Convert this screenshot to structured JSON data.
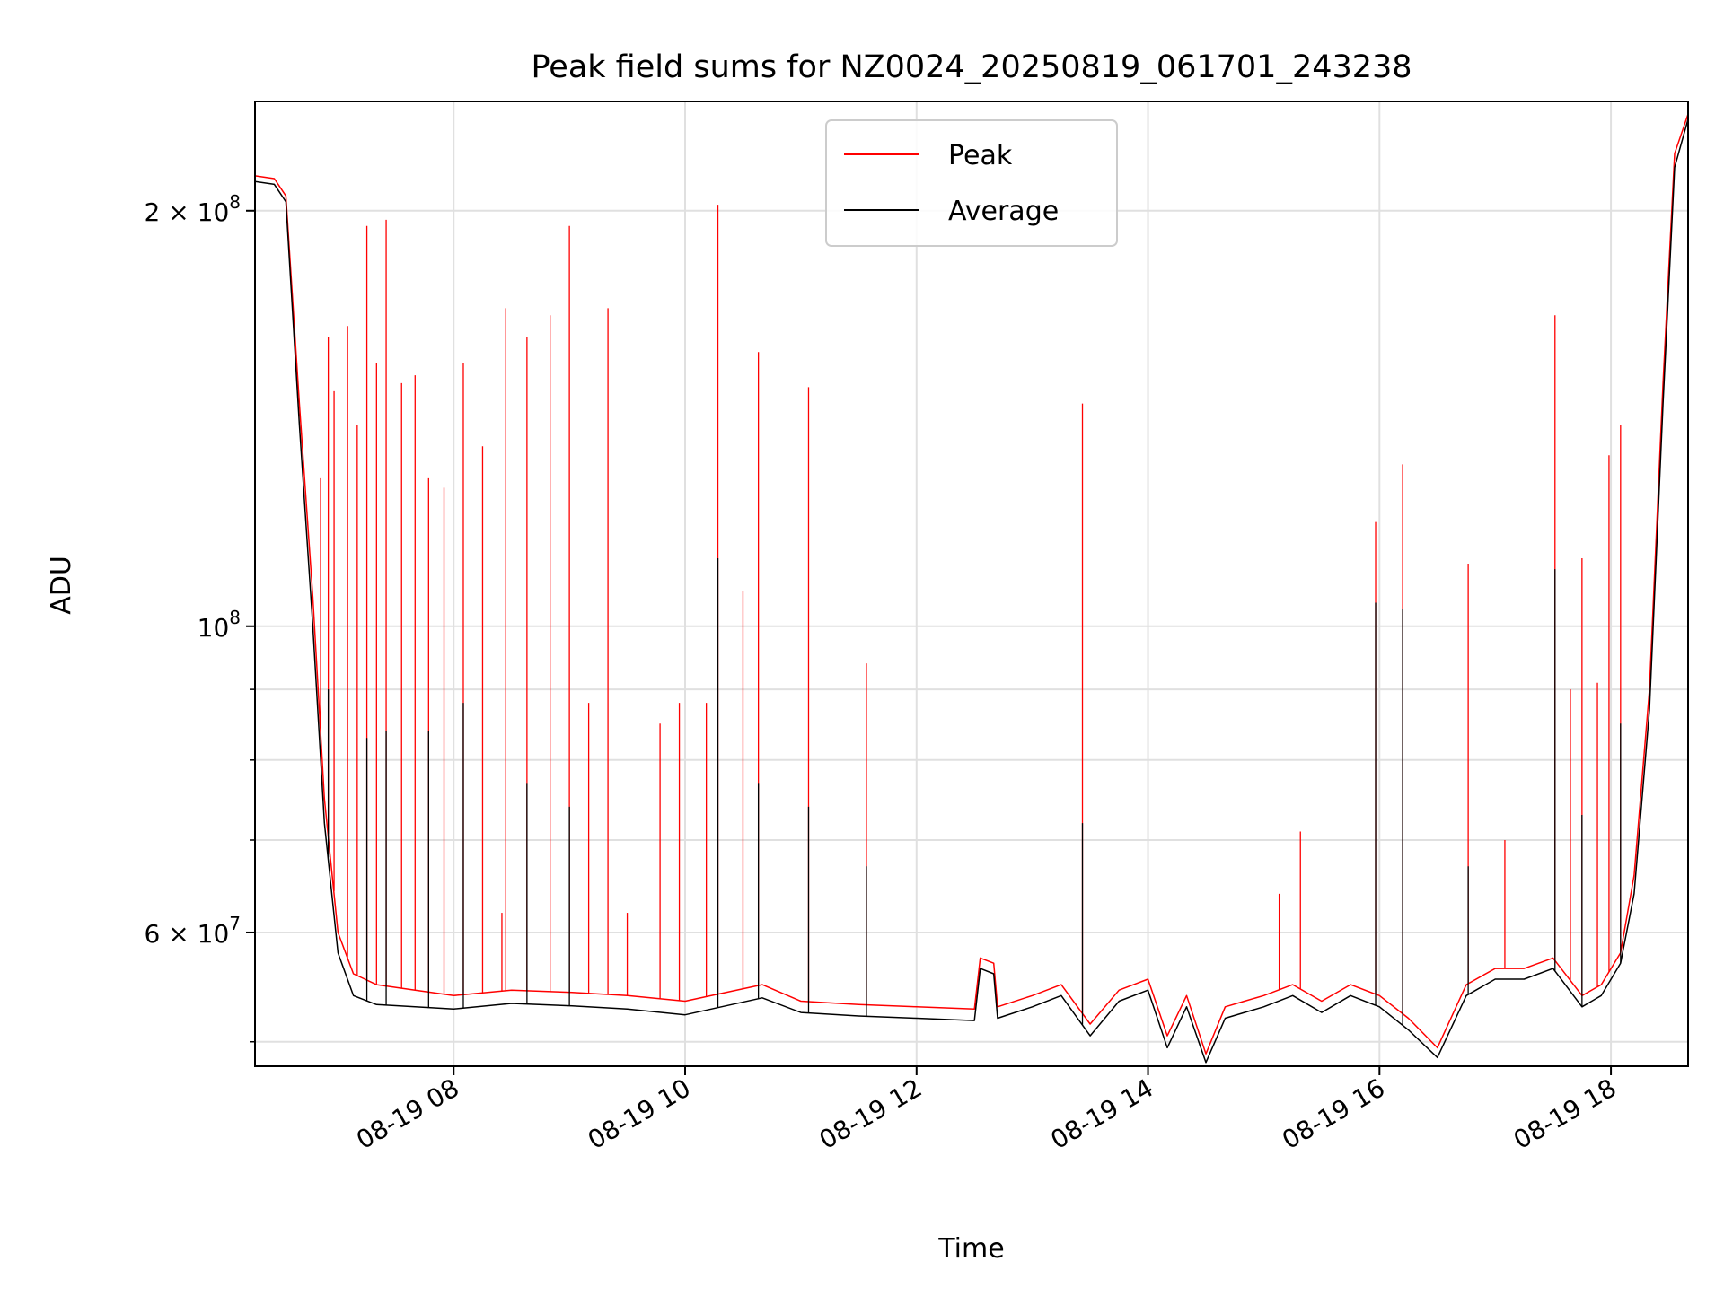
{
  "chart_data": {
    "type": "line",
    "title": "Peak field sums for NZ0024_20250819_061701_243238",
    "xlabel": "Time",
    "ylabel": "ADU",
    "yscale": "log",
    "xlim": [
      "2025-08-19 06:17",
      "2025-08-19 18:40"
    ],
    "ylim": [
      48000000,
      240000000
    ],
    "grid": true,
    "legend_position": "top-center",
    "x_ticks": [
      {
        "value": "2025-08-19 08:00",
        "label": "08-19 08"
      },
      {
        "value": "2025-08-19 10:00",
        "label": "08-19 10"
      },
      {
        "value": "2025-08-19 12:00",
        "label": "08-19 12"
      },
      {
        "value": "2025-08-19 14:00",
        "label": "08-19 14"
      },
      {
        "value": "2025-08-19 16:00",
        "label": "08-19 16"
      },
      {
        "value": "2025-08-19 18:00",
        "label": "08-19 18"
      }
    ],
    "y_ticks_labeled": [
      {
        "value": 60000000,
        "base": "6",
        "exp": "7"
      },
      {
        "value": 100000000,
        "base": "",
        "exp": "8"
      },
      {
        "value": 200000000,
        "base": "2",
        "exp": "8"
      }
    ],
    "y_ticks_minor": [
      50000000,
      70000000,
      80000000,
      90000000
    ],
    "series": [
      {
        "name": "Peak",
        "color": "#ff0000",
        "x": [
          "2025-08-19 06:17",
          "2025-08-19 06:27",
          "2025-08-19 06:33",
          "2025-08-19 06:40",
          "2025-08-19 06:47",
          "2025-08-19 06:53",
          "2025-08-19 07:00",
          "2025-08-19 07:08",
          "2025-08-19 07:20",
          "2025-08-19 07:40",
          "2025-08-19 08:00",
          "2025-08-19 08:30",
          "2025-08-19 09:00",
          "2025-08-19 09:30",
          "2025-08-19 10:00",
          "2025-08-19 10:40",
          "2025-08-19 11:00",
          "2025-08-19 11:30",
          "2025-08-19 12:00",
          "2025-08-19 12:30",
          "2025-08-19 12:33",
          "2025-08-19 12:40",
          "2025-08-19 12:42",
          "2025-08-19 13:00",
          "2025-08-19 13:15",
          "2025-08-19 13:30",
          "2025-08-19 13:45",
          "2025-08-19 14:00",
          "2025-08-19 14:10",
          "2025-08-19 14:20",
          "2025-08-19 14:30",
          "2025-08-19 14:40",
          "2025-08-19 14:50",
          "2025-08-19 15:00",
          "2025-08-19 15:15",
          "2025-08-19 15:30",
          "2025-08-19 15:45",
          "2025-08-19 16:00",
          "2025-08-19 16:15",
          "2025-08-19 16:30",
          "2025-08-19 16:45",
          "2025-08-19 17:00",
          "2025-08-19 17:15",
          "2025-08-19 17:30",
          "2025-08-19 17:45",
          "2025-08-19 17:55",
          "2025-08-19 18:05",
          "2025-08-19 18:12",
          "2025-08-19 18:20",
          "2025-08-19 18:27",
          "2025-08-19 18:33",
          "2025-08-19 18:40"
        ],
        "y": [
          212000000,
          211000000,
          205000000,
          145000000,
          105000000,
          75000000,
          60000000,
          56000000,
          55000000,
          54500000,
          54000000,
          54500000,
          54300000,
          54000000,
          53500000,
          55000000,
          53500000,
          53200000,
          53000000,
          52800000,
          57500000,
          57000000,
          53000000,
          54000000,
          55000000,
          51500000,
          54500000,
          55500000,
          50500000,
          54000000,
          49000000,
          53000000,
          53500000,
          54000000,
          55000000,
          53500000,
          55000000,
          54000000,
          52000000,
          49500000,
          55000000,
          56500000,
          56500000,
          57500000,
          54000000,
          55000000,
          58000000,
          66000000,
          90000000,
          150000000,
          220000000,
          235000000
        ],
        "spikes": [
          [
            "2025-08-19 06:51",
            128000000
          ],
          [
            "2025-08-19 06:55",
            162000000
          ],
          [
            "2025-08-19 06:58",
            148000000
          ],
          [
            "2025-08-19 07:05",
            165000000
          ],
          [
            "2025-08-19 07:10",
            140000000
          ],
          [
            "2025-08-19 07:15",
            195000000
          ],
          [
            "2025-08-19 07:20",
            155000000
          ],
          [
            "2025-08-19 07:25",
            197000000
          ],
          [
            "2025-08-19 07:33",
            150000000
          ],
          [
            "2025-08-19 07:40",
            152000000
          ],
          [
            "2025-08-19 07:47",
            128000000
          ],
          [
            "2025-08-19 07:55",
            126000000
          ],
          [
            "2025-08-19 08:05",
            155000000
          ],
          [
            "2025-08-19 08:15",
            135000000
          ],
          [
            "2025-08-19 08:25",
            62000000
          ],
          [
            "2025-08-19 08:27",
            170000000
          ],
          [
            "2025-08-19 08:38",
            162000000
          ],
          [
            "2025-08-19 08:50",
            168000000
          ],
          [
            "2025-08-19 09:00",
            195000000
          ],
          [
            "2025-08-19 09:10",
            88000000
          ],
          [
            "2025-08-19 09:20",
            170000000
          ],
          [
            "2025-08-19 09:30",
            62000000
          ],
          [
            "2025-08-19 09:47",
            85000000
          ],
          [
            "2025-08-19 09:57",
            88000000
          ],
          [
            "2025-08-19 10:11",
            88000000
          ],
          [
            "2025-08-19 10:17",
            202000000
          ],
          [
            "2025-08-19 10:30",
            106000000
          ],
          [
            "2025-08-19 10:38",
            158000000
          ],
          [
            "2025-08-19 11:04",
            149000000
          ],
          [
            "2025-08-19 11:34",
            94000000
          ],
          [
            "2025-08-19 13:26",
            145000000
          ],
          [
            "2025-08-19 15:08",
            64000000
          ],
          [
            "2025-08-19 15:19",
            71000000
          ],
          [
            "2025-08-19 15:58",
            119000000
          ],
          [
            "2025-08-19 16:12",
            131000000
          ],
          [
            "2025-08-19 16:46",
            111000000
          ],
          [
            "2025-08-19 17:05",
            70000000
          ],
          [
            "2025-08-19 17:31",
            168000000
          ],
          [
            "2025-08-19 17:39",
            90000000
          ],
          [
            "2025-08-19 17:45",
            112000000
          ],
          [
            "2025-08-19 17:53",
            91000000
          ],
          [
            "2025-08-19 17:59",
            133000000
          ],
          [
            "2025-08-19 18:05",
            140000000
          ]
        ]
      },
      {
        "name": "Average",
        "color": "#000000",
        "x": [
          "2025-08-19 06:17",
          "2025-08-19 06:27",
          "2025-08-19 06:33",
          "2025-08-19 06:40",
          "2025-08-19 06:47",
          "2025-08-19 06:53",
          "2025-08-19 07:00",
          "2025-08-19 07:08",
          "2025-08-19 07:20",
          "2025-08-19 07:40",
          "2025-08-19 08:00",
          "2025-08-19 08:30",
          "2025-08-19 09:00",
          "2025-08-19 09:30",
          "2025-08-19 10:00",
          "2025-08-19 10:40",
          "2025-08-19 11:00",
          "2025-08-19 11:30",
          "2025-08-19 12:00",
          "2025-08-19 12:30",
          "2025-08-19 12:33",
          "2025-08-19 12:40",
          "2025-08-19 12:42",
          "2025-08-19 13:00",
          "2025-08-19 13:15",
          "2025-08-19 13:30",
          "2025-08-19 13:45",
          "2025-08-19 14:00",
          "2025-08-19 14:10",
          "2025-08-19 14:20",
          "2025-08-19 14:30",
          "2025-08-19 14:40",
          "2025-08-19 14:50",
          "2025-08-19 15:00",
          "2025-08-19 15:15",
          "2025-08-19 15:30",
          "2025-08-19 15:45",
          "2025-08-19 16:00",
          "2025-08-19 16:15",
          "2025-08-19 16:30",
          "2025-08-19 16:45",
          "2025-08-19 17:00",
          "2025-08-19 17:15",
          "2025-08-19 17:30",
          "2025-08-19 17:45",
          "2025-08-19 17:55",
          "2025-08-19 18:05",
          "2025-08-19 18:12",
          "2025-08-19 18:20",
          "2025-08-19 18:27",
          "2025-08-19 18:33",
          "2025-08-19 18:40"
        ],
        "y": [
          210000000,
          209000000,
          203000000,
          140000000,
          100000000,
          72000000,
          58000000,
          54000000,
          53200000,
          53000000,
          52800000,
          53300000,
          53100000,
          52800000,
          52300000,
          53800000,
          52500000,
          52200000,
          52000000,
          51800000,
          56500000,
          56000000,
          52000000,
          53000000,
          54000000,
          50500000,
          53500000,
          54500000,
          49500000,
          53000000,
          48300000,
          52000000,
          52500000,
          53000000,
          54000000,
          52500000,
          54000000,
          53000000,
          51000000,
          48700000,
          54000000,
          55500000,
          55500000,
          56500000,
          53000000,
          54000000,
          57000000,
          64000000,
          87000000,
          145000000,
          215000000,
          233000000
        ],
        "spikes": [
          [
            "2025-08-19 06:55",
            90000000
          ],
          [
            "2025-08-19 07:15",
            83000000
          ],
          [
            "2025-08-19 07:25",
            84000000
          ],
          [
            "2025-08-19 07:47",
            84000000
          ],
          [
            "2025-08-19 08:05",
            88000000
          ],
          [
            "2025-08-19 08:38",
            77000000
          ],
          [
            "2025-08-19 09:00",
            74000000
          ],
          [
            "2025-08-19 10:17",
            112000000
          ],
          [
            "2025-08-19 10:38",
            77000000
          ],
          [
            "2025-08-19 11:04",
            74000000
          ],
          [
            "2025-08-19 11:34",
            67000000
          ],
          [
            "2025-08-19 13:26",
            72000000
          ],
          [
            "2025-08-19 15:58",
            104000000
          ],
          [
            "2025-08-19 16:12",
            103000000
          ],
          [
            "2025-08-19 16:46",
            67000000
          ],
          [
            "2025-08-19 17:31",
            110000000
          ],
          [
            "2025-08-19 17:45",
            73000000
          ],
          [
            "2025-08-19 18:05",
            85000000
          ]
        ]
      }
    ]
  }
}
